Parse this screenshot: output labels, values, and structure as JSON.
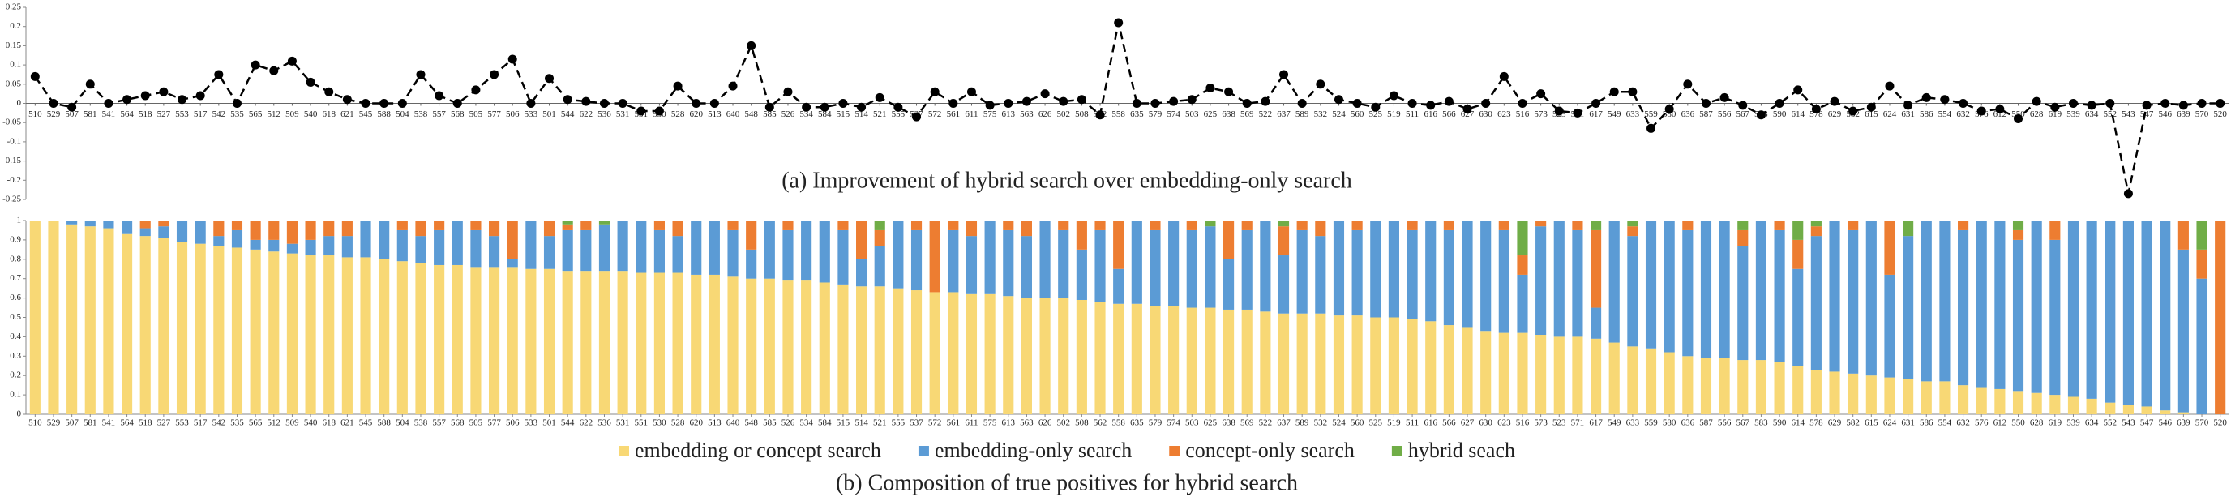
{
  "chart_data": [
    {
      "type": "line",
      "title": "(a) Improvement of hybrid search over embedding-only search",
      "categories": [
        "510",
        "529",
        "507",
        "581",
        "541",
        "564",
        "518",
        "527",
        "553",
        "517",
        "542",
        "535",
        "565",
        "512",
        "509",
        "540",
        "618",
        "621",
        "545",
        "588",
        "504",
        "538",
        "557",
        "568",
        "505",
        "577",
        "506",
        "533",
        "501",
        "544",
        "622",
        "536",
        "531",
        "551",
        "530",
        "528",
        "620",
        "513",
        "640",
        "548",
        "585",
        "526",
        "534",
        "584",
        "515",
        "514",
        "521",
        "555",
        "537",
        "572",
        "561",
        "611",
        "575",
        "613",
        "563",
        "626",
        "502",
        "508",
        "562",
        "558",
        "635",
        "579",
        "574",
        "503",
        "625",
        "638",
        "569",
        "522",
        "637",
        "589",
        "532",
        "524",
        "560",
        "525",
        "519",
        "511",
        "616",
        "566",
        "627",
        "630",
        "623",
        "516",
        "573",
        "523",
        "571",
        "617",
        "549",
        "633",
        "559",
        "580",
        "636",
        "587",
        "556",
        "567",
        "583",
        "590",
        "614",
        "578",
        "629",
        "582",
        "615",
        "624",
        "631",
        "586",
        "554",
        "632",
        "576",
        "612",
        "550",
        "628",
        "619",
        "539",
        "634",
        "552",
        "543",
        "547",
        "546",
        "639",
        "570",
        "520"
      ],
      "values": [
        0.07,
        0,
        -0.01,
        0.05,
        0,
        0.01,
        0.02,
        0.03,
        0.01,
        0.02,
        0.075,
        0,
        0.1,
        0.085,
        0.11,
        0.055,
        0.03,
        0.01,
        0,
        0,
        0,
        0.075,
        0.02,
        0,
        0.035,
        0.075,
        0.115,
        0,
        0.065,
        0.01,
        0.005,
        0,
        0,
        -0.02,
        -0.02,
        0.045,
        0,
        0,
        0.045,
        0.15,
        -0.01,
        0.03,
        -0.01,
        -0.01,
        0,
        -0.01,
        0.015,
        -0.01,
        -0.035,
        0.03,
        0,
        0.03,
        -0.005,
        0,
        0.005,
        0.025,
        0.005,
        0.01,
        -0.03,
        0.21,
        0,
        0,
        0.005,
        0.01,
        0.04,
        0.03,
        0,
        0.005,
        0.075,
        0,
        0.05,
        0.01,
        0,
        -0.01,
        0.02,
        0,
        -0.005,
        0.005,
        -0.015,
        0,
        0.07,
        0,
        0.025,
        -0.02,
        -0.025,
        0,
        0.03,
        0.03,
        -0.065,
        -0.015,
        0.05,
        0,
        0.015,
        -0.005,
        -0.03,
        0,
        0.035,
        -0.015,
        0.005,
        -0.02,
        -0.01,
        0.045,
        -0.005,
        0.015,
        0.01,
        0,
        -0.02,
        -0.015,
        -0.04,
        0.005,
        -0.01,
        0,
        -0.005,
        0,
        -0.235,
        -0.005,
        0,
        -0.005,
        0,
        0
      ],
      "color": "#000000",
      "dashed": true,
      "ylim": [
        -0.25,
        0.25
      ],
      "yticks": [
        -0.25,
        -0.2,
        -0.15,
        -0.1,
        -0.05,
        0,
        0.05,
        0.1,
        0.15,
        0.2,
        0.25
      ]
    },
    {
      "type": "stacked_bar",
      "title": "(b) Composition of true positives for hybrid search",
      "categories": [
        "510",
        "529",
        "507",
        "581",
        "541",
        "564",
        "518",
        "527",
        "553",
        "517",
        "542",
        "535",
        "565",
        "512",
        "509",
        "540",
        "618",
        "621",
        "545",
        "588",
        "504",
        "538",
        "557",
        "568",
        "505",
        "577",
        "506",
        "533",
        "501",
        "544",
        "622",
        "536",
        "531",
        "551",
        "530",
        "528",
        "620",
        "513",
        "640",
        "548",
        "585",
        "526",
        "534",
        "584",
        "515",
        "514",
        "521",
        "555",
        "537",
        "572",
        "561",
        "611",
        "575",
        "613",
        "563",
        "626",
        "502",
        "508",
        "562",
        "558",
        "635",
        "579",
        "574",
        "503",
        "625",
        "638",
        "569",
        "522",
        "637",
        "589",
        "532",
        "524",
        "560",
        "525",
        "519",
        "511",
        "616",
        "566",
        "627",
        "630",
        "623",
        "516",
        "573",
        "523",
        "571",
        "617",
        "549",
        "633",
        "559",
        "580",
        "636",
        "587",
        "556",
        "567",
        "583",
        "590",
        "614",
        "578",
        "629",
        "582",
        "615",
        "624",
        "631",
        "586",
        "554",
        "632",
        "576",
        "612",
        "550",
        "628",
        "619",
        "539",
        "634",
        "552",
        "543",
        "547",
        "546",
        "639",
        "570",
        "520"
      ],
      "series": [
        {
          "name": "embedding or concept search",
          "color": "#f8d875",
          "values": [
            1,
            1,
            0.98,
            0.97,
            0.96,
            0.93,
            0.92,
            0.91,
            0.89,
            0.88,
            0.87,
            0.86,
            0.85,
            0.84,
            0.83,
            0.82,
            0.82,
            0.81,
            0.81,
            0.8,
            0.79,
            0.78,
            0.77,
            0.77,
            0.76,
            0.76,
            0.76,
            0.75,
            0.75,
            0.74,
            0.74,
            0.74,
            0.74,
            0.73,
            0.73,
            0.73,
            0.72,
            0.72,
            0.71,
            0.7,
            0.7,
            0.69,
            0.69,
            0.68,
            0.67,
            0.66,
            0.66,
            0.65,
            0.64,
            0.63,
            0.63,
            0.62,
            0.62,
            0.61,
            0.6,
            0.6,
            0.6,
            0.59,
            0.58,
            0.57,
            0.57,
            0.56,
            0.56,
            0.55,
            0.55,
            0.54,
            0.54,
            0.53,
            0.52,
            0.52,
            0.52,
            0.51,
            0.51,
            0.5,
            0.5,
            0.49,
            0.48,
            0.46,
            0.45,
            0.43,
            0.42,
            0.42,
            0.41,
            0.4,
            0.4,
            0.39,
            0.37,
            0.35,
            0.34,
            0.32,
            0.3,
            0.29,
            0.29,
            0.28,
            0.28,
            0.27,
            0.25,
            0.23,
            0.22,
            0.21,
            0.2,
            0.19,
            0.18,
            0.17,
            0.17,
            0.15,
            0.14,
            0.13,
            0.12,
            0.11,
            0.1,
            0.09,
            0.08,
            0.06,
            0.05,
            0.04,
            0.02,
            0.01,
            0,
            0
          ]
        },
        {
          "name": "embedding-only search",
          "color": "#5b9bd5",
          "values": [
            0,
            0,
            0.02,
            0.03,
            0.04,
            0.07,
            0.04,
            0.06,
            0.11,
            0.12,
            0.05,
            0.09,
            0.05,
            0.06,
            0.05,
            0.08,
            0.1,
            0.11,
            0.19,
            0.2,
            0.16,
            0.14,
            0.18,
            0.23,
            0.19,
            0.16,
            0.04,
            0.25,
            0.17,
            0.21,
            0.21,
            0.24,
            0.26,
            0.27,
            0.22,
            0.19,
            0.28,
            0.28,
            0.24,
            0.15,
            0.3,
            0.26,
            0.31,
            0.32,
            0.28,
            0.14,
            0.21,
            0.35,
            0.31,
            0,
            0.32,
            0.3,
            0.38,
            0.34,
            0.32,
            0.4,
            0.35,
            0.26,
            0.37,
            0.18,
            0.43,
            0.39,
            0.44,
            0.4,
            0.42,
            0.26,
            0.41,
            0.47,
            0.3,
            0.43,
            0.4,
            0.49,
            0.44,
            0.5,
            0.5,
            0.46,
            0.52,
            0.49,
            0.55,
            0.57,
            0.53,
            0.3,
            0.56,
            0.6,
            0.55,
            0.16,
            0.63,
            0.57,
            0.66,
            0.68,
            0.65,
            0.71,
            0.71,
            0.59,
            0.72,
            0.68,
            0.5,
            0.69,
            0.78,
            0.74,
            0.8,
            0.53,
            0.74,
            0.83,
            0.83,
            0.8,
            0.86,
            0.87,
            0.78,
            0.89,
            0.8,
            0.91,
            0.92,
            0.94,
            0.95,
            0.96,
            0.98,
            0.84,
            0.7,
            0
          ]
        },
        {
          "name": "concept-only search",
          "color": "#ed7d31",
          "values": [
            0,
            0,
            0,
            0,
            0,
            0,
            0.04,
            0.03,
            0,
            0,
            0.08,
            0.05,
            0.1,
            0.1,
            0.12,
            0.1,
            0.08,
            0.08,
            0,
            0,
            0.05,
            0.08,
            0.05,
            0,
            0.05,
            0.08,
            0.2,
            0,
            0.08,
            0.03,
            0.05,
            0,
            0,
            0,
            0.05,
            0.08,
            0,
            0,
            0.05,
            0.15,
            0,
            0.05,
            0,
            0,
            0.05,
            0.2,
            0.08,
            0,
            0.05,
            0.37,
            0.05,
            0.08,
            0,
            0.05,
            0.08,
            0,
            0.05,
            0.15,
            0.05,
            0.25,
            0,
            0.05,
            0,
            0.05,
            0,
            0.2,
            0.05,
            0,
            0.15,
            0.05,
            0.08,
            0,
            0.05,
            0,
            0,
            0.05,
            0,
            0.05,
            0,
            0,
            0.05,
            0.1,
            0.03,
            0,
            0.05,
            0.4,
            0,
            0.05,
            0,
            0,
            0.05,
            0,
            0,
            0.08,
            0,
            0.05,
            0.15,
            0.05,
            0,
            0.05,
            0,
            0.28,
            0,
            0,
            0,
            0.05,
            0,
            0,
            0.05,
            0,
            0.1,
            0,
            0,
            0,
            0,
            0,
            0,
            0.15,
            0.15,
            1
          ]
        },
        {
          "name": "hybrid seach",
          "color": "#70ad47",
          "values": [
            0,
            0,
            0,
            0,
            0,
            0,
            0,
            0,
            0,
            0,
            0,
            0,
            0,
            0,
            0,
            0,
            0,
            0,
            0,
            0,
            0,
            0,
            0,
            0,
            0,
            0,
            0,
            0,
            0,
            0.02,
            0,
            0.02,
            0,
            0,
            0,
            0,
            0,
            0,
            0,
            0,
            0,
            0,
            0,
            0,
            0,
            0,
            0.05,
            0,
            0,
            0,
            0,
            0,
            0,
            0,
            0,
            0,
            0,
            0,
            0,
            0,
            0,
            0,
            0,
            0,
            0.03,
            0,
            0,
            0,
            0.03,
            0,
            0,
            0,
            0,
            0,
            0,
            0,
            0,
            0,
            0,
            0,
            0,
            0.18,
            0,
            0,
            0,
            0.05,
            0,
            0.03,
            0,
            0,
            0,
            0,
            0,
            0.05,
            0,
            0,
            0.1,
            0.03,
            0,
            0,
            0,
            0,
            0.08,
            0,
            0,
            0,
            0,
            0,
            0.05,
            0,
            0,
            0,
            0,
            0,
            0,
            0,
            0,
            0,
            0.15,
            0
          ]
        }
      ],
      "ylim": [
        0,
        1
      ],
      "yticks": [
        0,
        0.1,
        0.2,
        0.3,
        0.4,
        0.5,
        0.6,
        0.7,
        0.8,
        0.9,
        1
      ]
    }
  ]
}
